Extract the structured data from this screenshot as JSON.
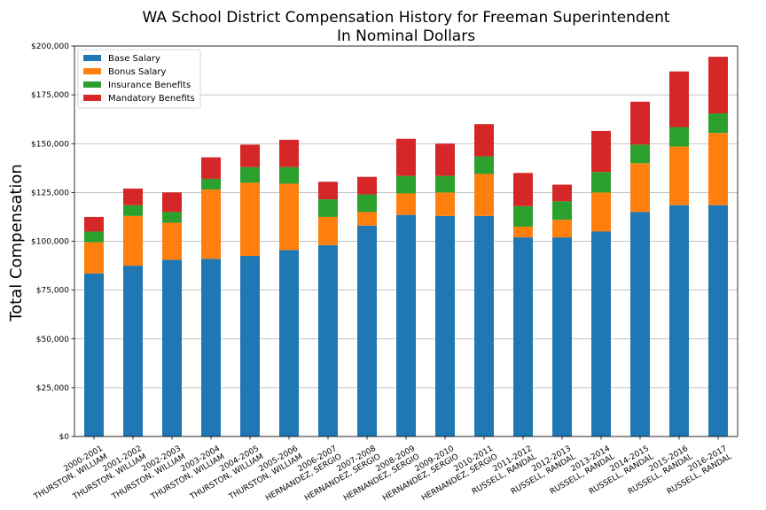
{
  "chart_data": {
    "type": "bar",
    "stacked": true,
    "title": "WA School District Compensation History for Freeman Superintendent",
    "subtitle": "In Nominal Dollars",
    "xlabel": "",
    "ylabel": "Total Compensation",
    "ylim": [
      0,
      200000
    ],
    "yticks": [
      0,
      25000,
      50000,
      75000,
      100000,
      125000,
      150000,
      175000,
      200000
    ],
    "ytick_labels": [
      "$0",
      "$25,000",
      "$50,000",
      "$75,000",
      "$100,000",
      "$125,000",
      "$150,000",
      "$175,000",
      "$200,000"
    ],
    "grid": "horizontal",
    "legend_position": "top-left",
    "categories": [
      [
        "2000-2001",
        "THURSTON, WILLIAM"
      ],
      [
        "2001-2002",
        "THURSTON, WILLIAM"
      ],
      [
        "2002-2003",
        "THURSTON, WILLIAM"
      ],
      [
        "2003-2004",
        "THURSTON, WILLIAM"
      ],
      [
        "2004-2005",
        "THURSTON, WILLIAM"
      ],
      [
        "2005-2006",
        "THURSTON, WILLIAM"
      ],
      [
        "2006-2007",
        "HERNANDEZ, SERGIO"
      ],
      [
        "2007-2008",
        "HERNANDEZ, SERGIO"
      ],
      [
        "2008-2009",
        "HERNANDEZ, SERGIO"
      ],
      [
        "2009-2010",
        "HERNANDEZ, SERGIO"
      ],
      [
        "2010-2011",
        "HERNANDEZ, SERGIO"
      ],
      [
        "2011-2012",
        "RUSSELL, RANDAL"
      ],
      [
        "2012-2013",
        "RUSSELL, RANDAL"
      ],
      [
        "2013-2014",
        "RUSSELL, RANDAL"
      ],
      [
        "2014-2015",
        "RUSSELL, RANDAL"
      ],
      [
        "2015-2016",
        "RUSSELL, RANDAL"
      ],
      [
        "2016-2017",
        "RUSSELL, RANDAL"
      ]
    ],
    "series": [
      {
        "name": "Base Salary",
        "color": "#1f77b4",
        "values": [
          83500,
          87500,
          90500,
          91000,
          92500,
          95500,
          98000,
          108000,
          113500,
          113000,
          113000,
          102000,
          102000,
          105000,
          115000,
          118500,
          118500
        ]
      },
      {
        "name": "Bonus Salary",
        "color": "#ff7f0e",
        "values": [
          16000,
          25500,
          19000,
          35500,
          37500,
          34000,
          14500,
          7000,
          11000,
          12000,
          21500,
          5500,
          9000,
          20000,
          25000,
          30000,
          37000
        ]
      },
      {
        "name": "Insurance Benefits",
        "color": "#2ca02c",
        "values": [
          5500,
          5500,
          5500,
          5500,
          8000,
          8500,
          9000,
          9000,
          9000,
          8500,
          9000,
          10500,
          9500,
          10500,
          9500,
          10000,
          10000
        ]
      },
      {
        "name": "Mandatory Benefits",
        "color": "#d62728",
        "values": [
          7500,
          8500,
          10000,
          11000,
          11500,
          14000,
          9000,
          9000,
          19000,
          16500,
          16500,
          17000,
          8500,
          21000,
          22000,
          28500,
          29000
        ]
      }
    ]
  }
}
